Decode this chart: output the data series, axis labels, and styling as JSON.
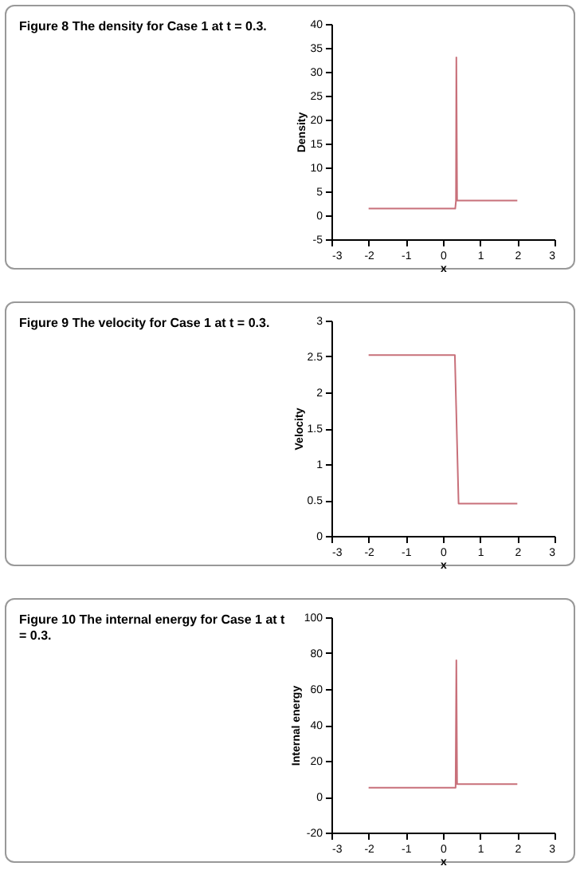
{
  "chart_data": [
    {
      "type": "line",
      "title": "Figure 8  The density for Case 1 at t = 0.3.",
      "xlabel": "x",
      "ylabel": "Density",
      "x": [
        -2,
        0.33,
        0.35,
        0.36,
        0.38,
        2
      ],
      "series": [
        {
          "color": "#c8707a",
          "values": [
            1.4,
            1.4,
            3,
            33,
            3.1,
            3.1
          ]
        }
      ],
      "xlim": [
        -3,
        3
      ],
      "xticks": [
        -3,
        -2,
        -1,
        0,
        1,
        2,
        3
      ],
      "ylim": [
        -5,
        40
      ],
      "yticks": [
        -5,
        0,
        5,
        10,
        15,
        20,
        25,
        30,
        35,
        40
      ],
      "grid": false,
      "legend": false,
      "marker": "none",
      "line_style": "solid"
    },
    {
      "type": "line",
      "title": "Figure 9  The velocity for Case 1 at t = 0.3.",
      "xlabel": "x",
      "ylabel": "Velocity",
      "x": [
        -2,
        0.32,
        0.42,
        2
      ],
      "series": [
        {
          "color": "#c8707a",
          "values": [
            2.52,
            2.52,
            0.45,
            0.45
          ]
        }
      ],
      "xlim": [
        -3,
        3
      ],
      "xticks": [
        -3,
        -2,
        -1,
        0,
        1,
        2,
        3
      ],
      "ylim": [
        0,
        3
      ],
      "yticks": [
        0,
        0.5,
        1,
        1.5,
        2,
        2.5,
        3
      ],
      "grid": false,
      "legend": false,
      "marker": "none",
      "line_style": "solid"
    },
    {
      "type": "line",
      "title": "Figure 10  The internal energy for Case 1 at t = 0.3.",
      "xlabel": "x",
      "ylabel": "Internal energy",
      "x": [
        -2,
        0.34,
        0.36,
        0.38,
        2
      ],
      "series": [
        {
          "color": "#c8707a",
          "values": [
            5,
            5,
            76,
            7,
            7
          ]
        }
      ],
      "xlim": [
        -3,
        3
      ],
      "xticks": [
        -3,
        -2,
        -1,
        0,
        1,
        2,
        3
      ],
      "ylim": [
        -20,
        100
      ],
      "yticks": [
        -20,
        0,
        20,
        40,
        60,
        80,
        100
      ],
      "grid": false,
      "legend": false,
      "marker": "none",
      "line_style": "solid"
    }
  ]
}
